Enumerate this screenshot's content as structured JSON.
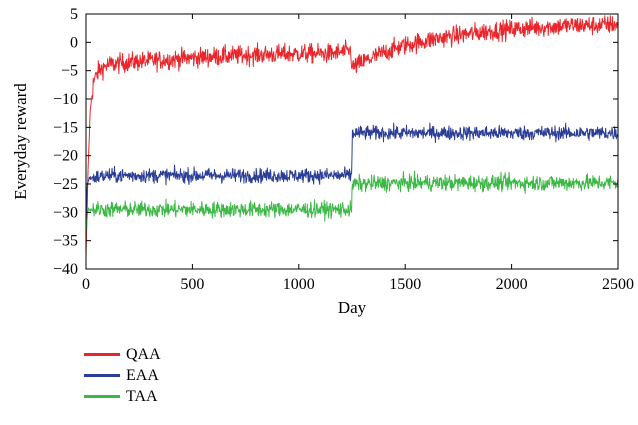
{
  "chart_data": {
    "type": "line",
    "xlabel": "Day",
    "ylabel": "Everyday reward",
    "xlim": [
      0,
      2500
    ],
    "ylim": [
      -40,
      5
    ],
    "x_ticks": [
      0,
      500,
      1000,
      1500,
      2000,
      2500
    ],
    "y_ticks": [
      5,
      0,
      -5,
      -10,
      -15,
      -20,
      -25,
      -30,
      -35,
      -40
    ],
    "x_tick_labels": [
      "0",
      "500",
      "1000",
      "1500",
      "2000",
      "2500"
    ],
    "y_tick_labels": [
      "5",
      "0",
      "−5",
      "−10",
      "−15",
      "−20",
      "−25",
      "−30",
      "−35",
      "−40"
    ],
    "grid": false,
    "legend_placement": "below",
    "series": [
      {
        "name": "QAA",
        "color": "#e8262b",
        "noise": 1.2,
        "points": [
          [
            0,
            -38
          ],
          [
            10,
            -22
          ],
          [
            20,
            -12
          ],
          [
            35,
            -7
          ],
          [
            60,
            -5
          ],
          [
            100,
            -4
          ],
          [
            200,
            -3.5
          ],
          [
            400,
            -3
          ],
          [
            600,
            -2.5
          ],
          [
            800,
            -2.2
          ],
          [
            1000,
            -2
          ],
          [
            1150,
            -2
          ],
          [
            1245,
            -1.5
          ],
          [
            1250,
            -4.5
          ],
          [
            1300,
            -3.5
          ],
          [
            1400,
            -1.8
          ],
          [
            1500,
            -0.5
          ],
          [
            1600,
            0.3
          ],
          [
            1700,
            1
          ],
          [
            1800,
            1.5
          ],
          [
            1900,
            2
          ],
          [
            2000,
            2.3
          ],
          [
            2100,
            2.6
          ],
          [
            2200,
            2.8
          ],
          [
            2300,
            3
          ],
          [
            2400,
            3
          ],
          [
            2500,
            3.2
          ]
        ]
      },
      {
        "name": "EAA",
        "color": "#2b3d96",
        "noise": 0.9,
        "points": [
          [
            0,
            -33
          ],
          [
            5,
            -25
          ],
          [
            15,
            -24
          ],
          [
            100,
            -23.5
          ],
          [
            500,
            -23.5
          ],
          [
            1000,
            -23.5
          ],
          [
            1248,
            -23.5
          ],
          [
            1252,
            -16
          ],
          [
            1500,
            -16
          ],
          [
            2000,
            -16
          ],
          [
            2500,
            -16
          ]
        ]
      },
      {
        "name": "TAA",
        "color": "#3cb846",
        "noise": 1.0,
        "points": [
          [
            0,
            -34
          ],
          [
            8,
            -29.5
          ],
          [
            100,
            -29.5
          ],
          [
            500,
            -29.5
          ],
          [
            1000,
            -29.5
          ],
          [
            1248,
            -29.5
          ],
          [
            1252,
            -25
          ],
          [
            1500,
            -24.8
          ],
          [
            2000,
            -24.8
          ],
          [
            2500,
            -24.8
          ]
        ]
      }
    ]
  }
}
